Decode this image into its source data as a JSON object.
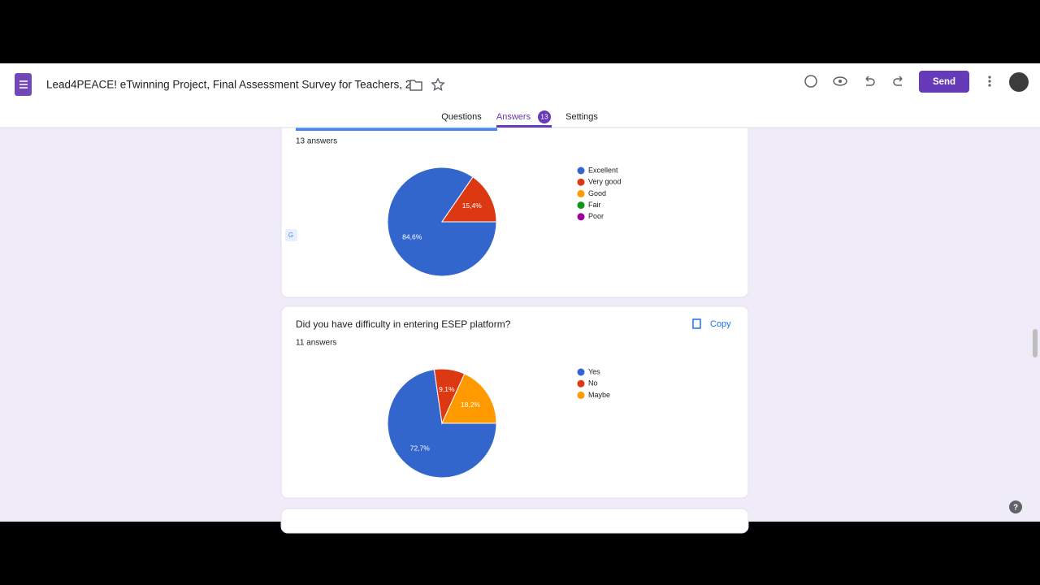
{
  "header": {
    "title": "Lead4PEACE!  eTwinning Project, Final Assessment Survey for Teachers, 2",
    "send": "Send"
  },
  "tabs": {
    "questions": "Questions",
    "answers": "Answers",
    "answers_count": 13,
    "settings": "Settings"
  },
  "cards": [
    {
      "answers": "13 answers",
      "chart_data": {
        "type": "pie",
        "categories": [
          "Excellent",
          "Very good",
          "Good",
          "Fair",
          "Poor"
        ],
        "values": [
          84.6,
          15.4,
          0,
          0,
          0
        ],
        "value_labels": [
          "84,6%",
          "15,4%",
          null,
          null,
          null
        ],
        "colors": [
          "#3366cc",
          "#dc3912",
          "#ff9900",
          "#109618",
          "#990099"
        ]
      }
    },
    {
      "question": "Did  you have difficulty in entering ESEP platform?",
      "copy": "Copy",
      "answers": "11 answers",
      "chart_data": {
        "type": "pie",
        "categories": [
          "Yes",
          "No",
          "Maybe"
        ],
        "values": [
          72.7,
          9.1,
          18.2
        ],
        "value_labels": [
          "72,7%",
          "9,1%",
          "18,2%"
        ],
        "colors": [
          "#3366cc",
          "#dc3912",
          "#ff9900"
        ]
      }
    }
  ]
}
